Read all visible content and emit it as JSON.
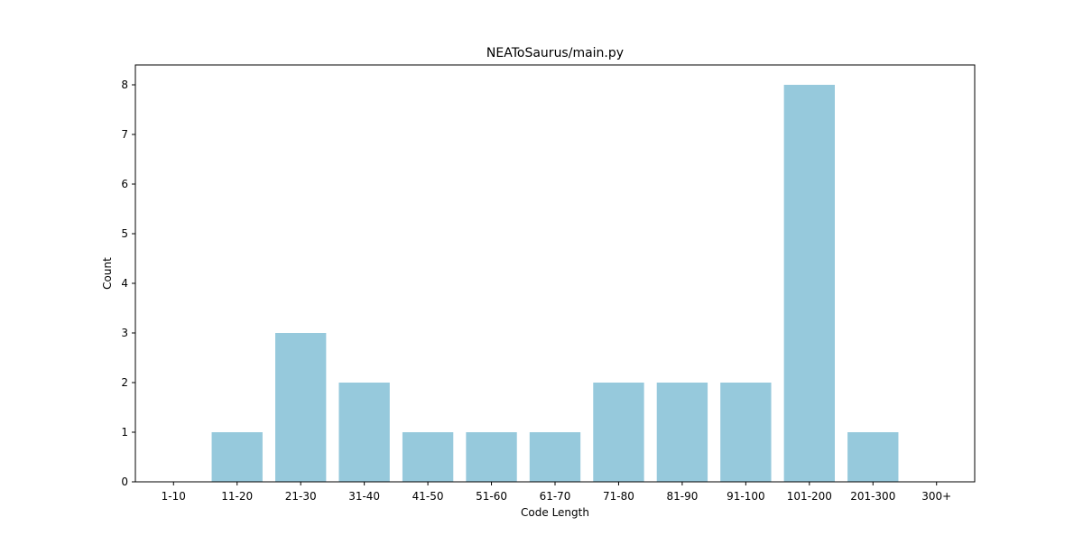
{
  "chart_data": {
    "type": "bar",
    "title": "NEAToSaurus/main.py",
    "xlabel": "Code Length",
    "ylabel": "Count",
    "categories": [
      "1-10",
      "11-20",
      "21-30",
      "31-40",
      "41-50",
      "51-60",
      "61-70",
      "71-80",
      "81-90",
      "91-100",
      "101-200",
      "201-300",
      "300+"
    ],
    "values": [
      0,
      1,
      3,
      2,
      1,
      1,
      1,
      2,
      2,
      2,
      8,
      1,
      0
    ],
    "yticks": [
      "0",
      "1",
      "2",
      "3",
      "4",
      "5",
      "6",
      "7",
      "8"
    ],
    "ylim": [
      0,
      8.4
    ],
    "grid": false,
    "bar_color": "#96c9dc"
  }
}
